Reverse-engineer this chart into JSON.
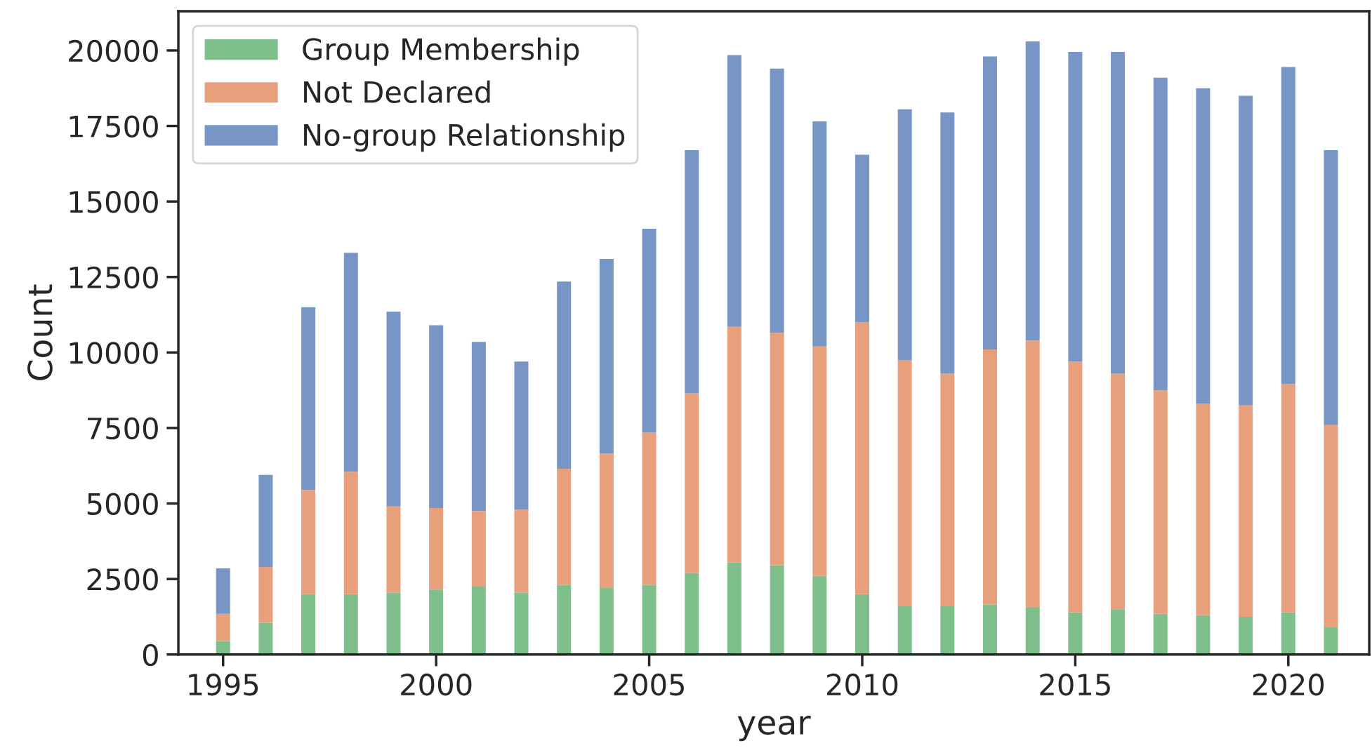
{
  "chart_data": {
    "type": "bar",
    "stacked": true,
    "xlabel": "year",
    "ylabel": "Count",
    "x": [
      1995,
      1996,
      1997,
      1998,
      1999,
      2000,
      2001,
      2002,
      2003,
      2004,
      2005,
      2006,
      2007,
      2008,
      2009,
      2010,
      2011,
      2012,
      2013,
      2014,
      2015,
      2016,
      2017,
      2018,
      2019,
      2020,
      2021
    ],
    "series": [
      {
        "name": "Group Membership",
        "color": "#7fbf8c",
        "values": [
          450,
          1050,
          2000,
          2000,
          2050,
          2150,
          2250,
          2050,
          2300,
          2200,
          2300,
          2700,
          3050,
          2950,
          2600,
          2000,
          1600,
          1600,
          1650,
          1550,
          1400,
          1500,
          1350,
          1300,
          1250,
          1400,
          900
        ]
      },
      {
        "name": "Not Declared",
        "color": "#e8a07c",
        "values": [
          900,
          1850,
          3450,
          4050,
          2850,
          2700,
          2500,
          2750,
          3850,
          4450,
          5050,
          5950,
          7800,
          7700,
          7600,
          9000,
          8150,
          7700,
          8450,
          8850,
          8300,
          7800,
          7400,
          7000,
          7000,
          7550,
          6700
        ]
      },
      {
        "name": "No-group Relationship",
        "color": "#7896c5",
        "values": [
          1500,
          3050,
          6050,
          7250,
          6450,
          6050,
          5600,
          4900,
          6200,
          6450,
          6750,
          8050,
          9000,
          8750,
          7450,
          5550,
          8300,
          8650,
          9700,
          9900,
          10250,
          10650,
          10350,
          10450,
          10250,
          10500,
          9100
        ]
      }
    ],
    "xlim": [
      1993.95,
      2021.9
    ],
    "xticks": [
      1995,
      2000,
      2005,
      2010,
      2015,
      2020
    ],
    "ylim": [
      0,
      21300
    ],
    "yticks": [
      0,
      2500,
      5000,
      7500,
      10000,
      12500,
      15000,
      17500,
      20000
    ],
    "legend": "top left",
    "grid": false
  }
}
